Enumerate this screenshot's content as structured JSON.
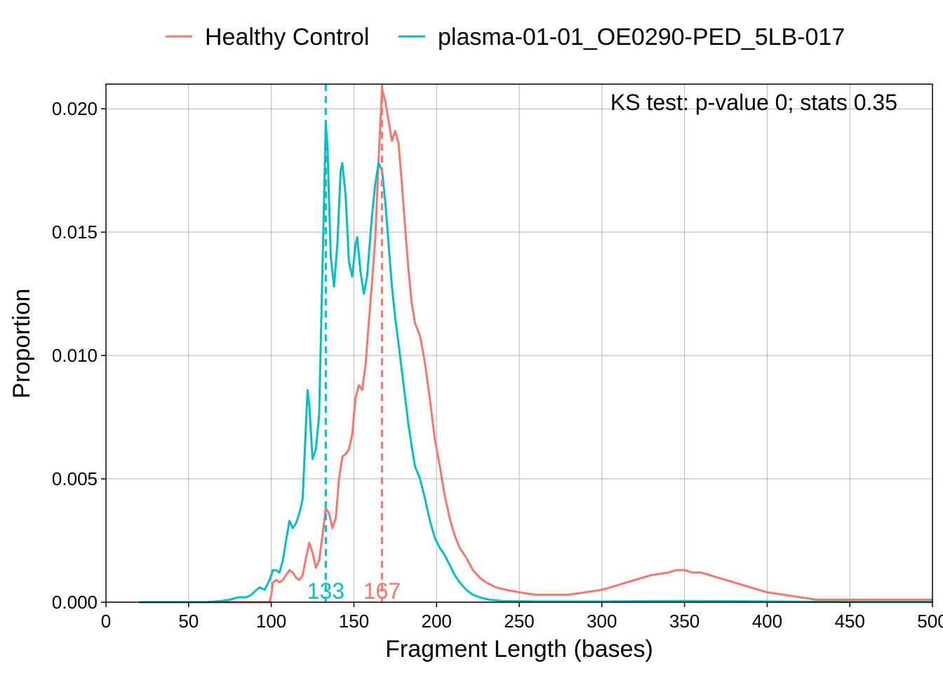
{
  "chart_data": {
    "type": "line",
    "title": "",
    "xlabel": "Fragment Length (bases)",
    "ylabel": "Proportion",
    "xlim": [
      0,
      500
    ],
    "ylim": [
      0,
      0.021
    ],
    "x_ticks": [
      0,
      50,
      100,
      150,
      200,
      250,
      300,
      350,
      400,
      450,
      500
    ],
    "y_ticks": [
      0.0,
      0.005,
      0.01,
      0.015,
      0.02
    ],
    "y_tick_labels": [
      "0.000",
      "0.005",
      "0.010",
      "0.015",
      "0.020"
    ],
    "grid": true,
    "legend_position": "top",
    "annotation": "KS test: p-value 0; stats 0.35",
    "series": [
      {
        "name": "Healthy Control",
        "color": "#F8766D",
        "mode_value": 167,
        "mode_label": "167",
        "points": [
          [
            20,
            0
          ],
          [
            99,
            0
          ],
          [
            100,
            0.0003
          ],
          [
            101,
            0.0008
          ],
          [
            103,
            0.0009
          ],
          [
            105,
            0.0008
          ],
          [
            107,
            0.0009
          ],
          [
            109,
            0.0011
          ],
          [
            111,
            0.0013
          ],
          [
            113,
            0.0012
          ],
          [
            115,
            0.001
          ],
          [
            117,
            0.0009
          ],
          [
            119,
            0.0011
          ],
          [
            121,
            0.0018
          ],
          [
            123,
            0.0024
          ],
          [
            125,
            0.002
          ],
          [
            127,
            0.0014
          ],
          [
            129,
            0.0017
          ],
          [
            131,
            0.0027
          ],
          [
            133,
            0.0038
          ],
          [
            135,
            0.0036
          ],
          [
            137,
            0.003
          ],
          [
            139,
            0.0034
          ],
          [
            141,
            0.005
          ],
          [
            143,
            0.0059
          ],
          [
            145,
            0.006
          ],
          [
            147,
            0.0062
          ],
          [
            149,
            0.0068
          ],
          [
            151,
            0.0083
          ],
          [
            153,
            0.0088
          ],
          [
            155,
            0.0086
          ],
          [
            157,
            0.0096
          ],
          [
            159,
            0.0113
          ],
          [
            161,
            0.013
          ],
          [
            163,
            0.0148
          ],
          [
            165,
            0.018
          ],
          [
            167,
            0.0208
          ],
          [
            169,
            0.0203
          ],
          [
            171,
            0.0195
          ],
          [
            173,
            0.0187
          ],
          [
            175,
            0.0191
          ],
          [
            177,
            0.0186
          ],
          [
            179,
            0.017
          ],
          [
            181,
            0.0152
          ],
          [
            183,
            0.0135
          ],
          [
            185,
            0.0121
          ],
          [
            187,
            0.0113
          ],
          [
            190,
            0.0108
          ],
          [
            193,
            0.0097
          ],
          [
            196,
            0.0082
          ],
          [
            199,
            0.0066
          ],
          [
            202,
            0.0055
          ],
          [
            205,
            0.0043
          ],
          [
            208,
            0.0034
          ],
          [
            211,
            0.0027
          ],
          [
            214,
            0.0022
          ],
          [
            218,
            0.0018
          ],
          [
            222,
            0.0013
          ],
          [
            226,
            0.001
          ],
          [
            230,
            0.0008
          ],
          [
            236,
            0.0006
          ],
          [
            242,
            0.0005
          ],
          [
            250,
            0.0004
          ],
          [
            260,
            0.0003
          ],
          [
            270,
            0.0003
          ],
          [
            280,
            0.0003
          ],
          [
            290,
            0.0004
          ],
          [
            300,
            0.0005
          ],
          [
            305,
            0.0006
          ],
          [
            310,
            0.0007
          ],
          [
            320,
            0.0009
          ],
          [
            330,
            0.0011
          ],
          [
            340,
            0.0012
          ],
          [
            345,
            0.0013
          ],
          [
            350,
            0.0013
          ],
          [
            355,
            0.0012
          ],
          [
            360,
            0.0012
          ],
          [
            370,
            0.001
          ],
          [
            380,
            0.0008
          ],
          [
            390,
            0.0006
          ],
          [
            400,
            0.0004
          ],
          [
            410,
            0.0003
          ],
          [
            420,
            0.0002
          ],
          [
            430,
            0.0001
          ],
          [
            440,
            0.0001
          ],
          [
            450,
            0.0001
          ],
          [
            470,
            0.0001
          ],
          [
            490,
            0.0001
          ],
          [
            500,
            0.0001
          ]
        ]
      },
      {
        "name": "plasma-01-01_OE0290-PED_5LB-017",
        "color": "#00BFC4",
        "mode_value": 133,
        "mode_label": "133",
        "points": [
          [
            20,
            0
          ],
          [
            60,
            0
          ],
          [
            70,
            5e-05
          ],
          [
            75,
            0.0001
          ],
          [
            80,
            0.0002
          ],
          [
            85,
            0.0002
          ],
          [
            88,
            0.0003
          ],
          [
            91,
            0.0005
          ],
          [
            93,
            0.0006
          ],
          [
            96,
            0.0005
          ],
          [
            99,
            0.0009
          ],
          [
            101,
            0.0013
          ],
          [
            103,
            0.0013
          ],
          [
            105,
            0.0012
          ],
          [
            107,
            0.0017
          ],
          [
            109,
            0.0025
          ],
          [
            111,
            0.0033
          ],
          [
            113,
            0.003
          ],
          [
            115,
            0.0032
          ],
          [
            117,
            0.0036
          ],
          [
            119,
            0.0042
          ],
          [
            121,
            0.0072
          ],
          [
            122,
            0.0086
          ],
          [
            123,
            0.008
          ],
          [
            125,
            0.0058
          ],
          [
            127,
            0.0062
          ],
          [
            129,
            0.0076
          ],
          [
            131,
            0.0135
          ],
          [
            133,
            0.0194
          ],
          [
            134,
            0.0185
          ],
          [
            136,
            0.014
          ],
          [
            138,
            0.0128
          ],
          [
            140,
            0.0145
          ],
          [
            142,
            0.0175
          ],
          [
            143,
            0.0178
          ],
          [
            145,
            0.0165
          ],
          [
            147,
            0.0138
          ],
          [
            149,
            0.0132
          ],
          [
            151,
            0.0145
          ],
          [
            152,
            0.0148
          ],
          [
            154,
            0.0134
          ],
          [
            156,
            0.0125
          ],
          [
            158,
            0.0132
          ],
          [
            161,
            0.0157
          ],
          [
            163,
            0.017
          ],
          [
            165,
            0.0178
          ],
          [
            167,
            0.0175
          ],
          [
            169,
            0.0162
          ],
          [
            171,
            0.0145
          ],
          [
            173,
            0.0128
          ],
          [
            175,
            0.0115
          ],
          [
            177,
            0.0105
          ],
          [
            179,
            0.0094
          ],
          [
            181,
            0.0083
          ],
          [
            183,
            0.0072
          ],
          [
            185,
            0.0063
          ],
          [
            187,
            0.0055
          ],
          [
            190,
            0.005
          ],
          [
            193,
            0.0042
          ],
          [
            196,
            0.0033
          ],
          [
            199,
            0.0026
          ],
          [
            202,
            0.0022
          ],
          [
            205,
            0.0019
          ],
          [
            208,
            0.0015
          ],
          [
            211,
            0.0011
          ],
          [
            214,
            0.0008
          ],
          [
            218,
            0.0005
          ],
          [
            222,
            0.0003
          ],
          [
            226,
            0.0002
          ],
          [
            232,
            0.0001
          ],
          [
            240,
            5e-05
          ],
          [
            260,
            3e-05
          ],
          [
            300,
            3e-05
          ],
          [
            350,
            5e-05
          ],
          [
            400,
            3e-05
          ],
          [
            450,
            1e-05
          ],
          [
            500,
            1e-05
          ]
        ]
      }
    ]
  }
}
